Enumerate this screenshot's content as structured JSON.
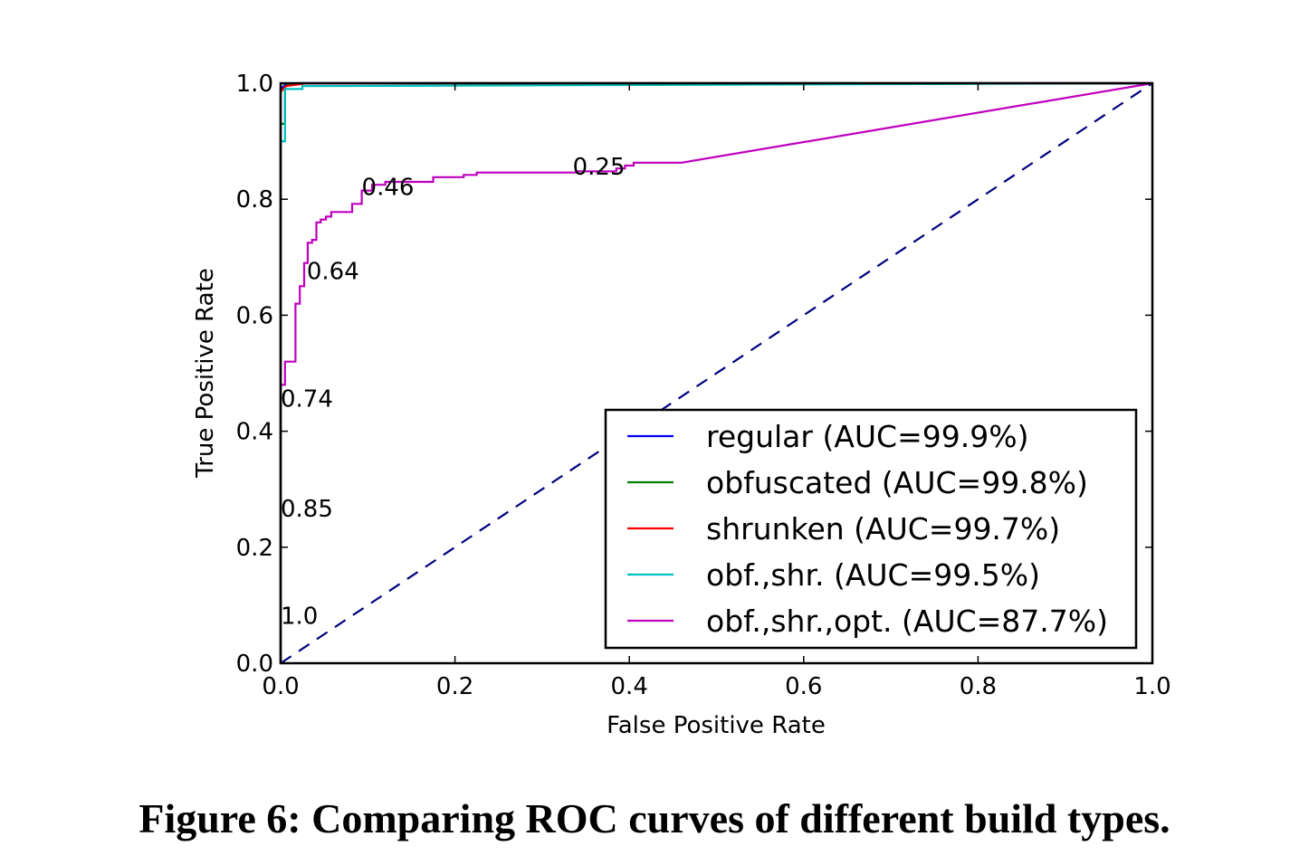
{
  "caption": "Figure 6: Comparing ROC curves of different build types.",
  "chart_data": {
    "type": "line",
    "title": "",
    "xlabel": "False Positive Rate",
    "ylabel": "True Positive Rate",
    "xlim": [
      0.0,
      1.0
    ],
    "ylim": [
      0.0,
      1.0
    ],
    "xticks": [
      "0.0",
      "0.2",
      "0.4",
      "0.6",
      "0.8",
      "1.0"
    ],
    "yticks": [
      "0.0",
      "0.2",
      "0.4",
      "0.6",
      "0.8",
      "1.0"
    ],
    "grid": false,
    "legend_position": "lower-right",
    "series": [
      {
        "name": "regular (AUC=99.9%)",
        "color": "#0000ff",
        "x": [
          0.0,
          0.0,
          0.005,
          0.02,
          1.0
        ],
        "y": [
          0.0,
          0.99,
          0.997,
          1.0,
          1.0
        ]
      },
      {
        "name": "obfuscated (AUC=99.8%)",
        "color": "#008000",
        "x": [
          0.0,
          0.0,
          0.005,
          0.005,
          0.02,
          1.0
        ],
        "y": [
          0.0,
          0.93,
          0.93,
          0.995,
          1.0,
          1.0
        ]
      },
      {
        "name": "shrunken (AUC=99.7%)",
        "color": "#ff0000",
        "x": [
          0.0,
          0.0,
          0.006,
          0.03,
          1.0
        ],
        "y": [
          0.0,
          0.985,
          0.995,
          1.0,
          1.0
        ]
      },
      {
        "name": "obf.,shr. (AUC=99.5%)",
        "color": "#00bfbf",
        "x": [
          0.0,
          0.0,
          0.005,
          0.005,
          0.025,
          0.025,
          1.0
        ],
        "y": [
          0.0,
          0.9,
          0.9,
          0.99,
          0.99,
          0.995,
          1.0
        ]
      },
      {
        "name": "obf.,shr.,opt. (AUC=87.7%)",
        "color": "#bf00bf",
        "x": [
          0.0,
          0.0,
          0.005,
          0.005,
          0.017,
          0.017,
          0.022,
          0.022,
          0.027,
          0.027,
          0.031,
          0.031,
          0.036,
          0.036,
          0.041,
          0.041,
          0.046,
          0.046,
          0.052,
          0.052,
          0.058,
          0.058,
          0.082,
          0.082,
          0.093,
          0.093,
          0.105,
          0.105,
          0.12,
          0.12,
          0.175,
          0.175,
          0.21,
          0.21,
          0.225,
          0.225,
          0.34,
          0.34,
          0.385,
          0.385,
          0.395,
          0.395,
          0.405,
          0.405,
          0.46,
          1.0
        ],
        "y": [
          0.0,
          0.48,
          0.48,
          0.52,
          0.52,
          0.62,
          0.62,
          0.65,
          0.65,
          0.69,
          0.69,
          0.725,
          0.725,
          0.73,
          0.73,
          0.76,
          0.76,
          0.765,
          0.765,
          0.77,
          0.77,
          0.778,
          0.778,
          0.792,
          0.792,
          0.815,
          0.815,
          0.825,
          0.825,
          0.83,
          0.83,
          0.838,
          0.838,
          0.842,
          0.842,
          0.846,
          0.846,
          0.848,
          0.848,
          0.853,
          0.853,
          0.858,
          0.858,
          0.863,
          0.863,
          1.0
        ]
      },
      {
        "name": "",
        "color": "#000080",
        "dashed": true,
        "x": [
          0.0,
          1.0
        ],
        "y": [
          0.0,
          1.0
        ]
      }
    ],
    "annotations": [
      {
        "text": "1.0",
        "x": 0.0,
        "y": 0.08
      },
      {
        "text": "0.85",
        "x": 0.0,
        "y": 0.265
      },
      {
        "text": "0.74",
        "x": 0.0,
        "y": 0.455
      },
      {
        "text": "0.64",
        "x": 0.03,
        "y": 0.675
      },
      {
        "text": "0.46",
        "x": 0.093,
        "y": 0.82
      },
      {
        "text": "0.25",
        "x": 0.335,
        "y": 0.855
      }
    ]
  }
}
